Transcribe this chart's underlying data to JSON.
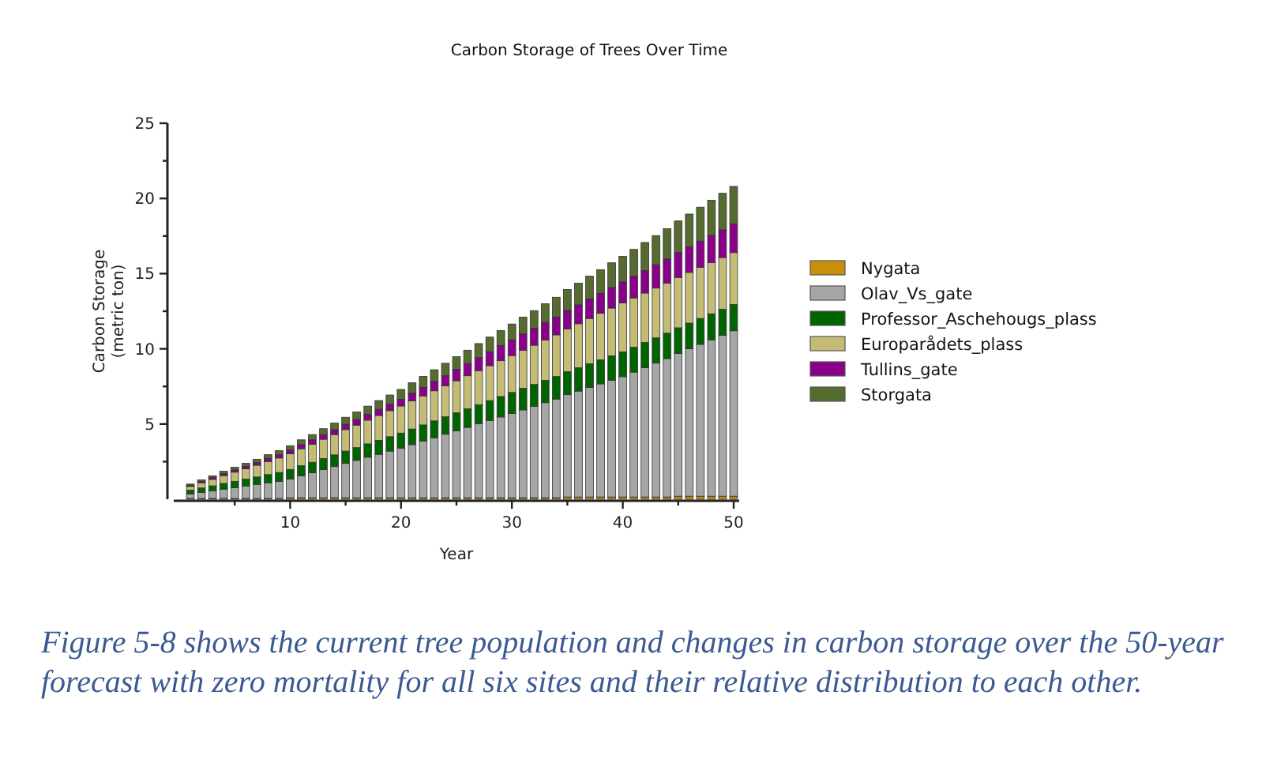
{
  "chart_data": {
    "type": "bar",
    "title": "Carbon Storage of Trees Over Time",
    "xlabel": "Year",
    "ylabel": "Carbon Storage\n(metric ton)",
    "stacked": true,
    "x": [
      1,
      2,
      3,
      4,
      5,
      6,
      7,
      8,
      9,
      10,
      11,
      12,
      13,
      14,
      15,
      16,
      17,
      18,
      19,
      20,
      21,
      22,
      23,
      24,
      25,
      26,
      27,
      28,
      29,
      30,
      31,
      32,
      33,
      34,
      35,
      36,
      37,
      38,
      39,
      40,
      41,
      42,
      43,
      44,
      45,
      46,
      47,
      48,
      49,
      50
    ],
    "xlim": [
      -0.5,
      50.5
    ],
    "xticks": [
      {
        "value": 5,
        "label": null
      },
      10,
      {
        "value": 15,
        "label": null
      },
      20,
      {
        "value": 25,
        "label": null
      },
      30,
      {
        "value": 35,
        "label": null
      },
      40,
      {
        "value": 45,
        "label": null
      },
      50
    ],
    "ylim": [
      0,
      25
    ],
    "yticks": [
      {
        "value": 2.5,
        "label": null
      },
      5,
      {
        "value": 7.5,
        "label": null
      },
      10,
      {
        "value": 12.5,
        "label": null
      },
      15,
      {
        "value": 17.5,
        "label": null
      },
      20,
      {
        "value": 22.5,
        "label": null
      },
      25
    ],
    "grid": false,
    "legend": "right",
    "series": [
      {
        "name": "Nygata",
        "color": "#c8900a",
        "values": [
          0.05,
          0.05,
          0.05,
          0.05,
          0.05,
          0.05,
          0.05,
          0.05,
          0.05,
          0.1,
          0.1,
          0.1,
          0.1,
          0.1,
          0.1,
          0.1,
          0.1,
          0.1,
          0.1,
          0.1,
          0.1,
          0.1,
          0.1,
          0.1,
          0.1,
          0.1,
          0.1,
          0.1,
          0.1,
          0.1,
          0.1,
          0.1,
          0.1,
          0.1,
          0.15,
          0.15,
          0.15,
          0.15,
          0.15,
          0.15,
          0.15,
          0.15,
          0.15,
          0.15,
          0.2,
          0.2,
          0.2,
          0.2,
          0.2,
          0.2
        ]
      },
      {
        "name": "Olav_Vs_gate",
        "color": "#a6a6a6",
        "values": [
          0.3,
          0.41,
          0.51,
          0.62,
          0.72,
          0.83,
          0.93,
          1.04,
          1.14,
          1.25,
          1.46,
          1.66,
          1.87,
          2.07,
          2.28,
          2.48,
          2.69,
          2.89,
          3.1,
          3.3,
          3.53,
          3.76,
          3.99,
          4.22,
          4.45,
          4.68,
          4.91,
          5.14,
          5.37,
          5.6,
          5.84,
          6.08,
          6.32,
          6.56,
          6.8,
          7.04,
          7.28,
          7.52,
          7.76,
          8.0,
          8.3,
          8.6,
          8.9,
          9.2,
          9.5,
          9.8,
          10.1,
          10.4,
          10.7,
          11.0
        ]
      },
      {
        "name": "Professor_Aschehougs_plass",
        "color": "#006400",
        "values": [
          0.25,
          0.29,
          0.33,
          0.38,
          0.42,
          0.46,
          0.5,
          0.55,
          0.59,
          0.63,
          0.67,
          0.7,
          0.74,
          0.78,
          0.82,
          0.85,
          0.89,
          0.93,
          0.96,
          1.0,
          1.04,
          1.08,
          1.12,
          1.16,
          1.2,
          1.24,
          1.28,
          1.32,
          1.36,
          1.4,
          1.43,
          1.45,
          1.48,
          1.5,
          1.53,
          1.55,
          1.58,
          1.6,
          1.63,
          1.65,
          1.66,
          1.67,
          1.68,
          1.69,
          1.7,
          1.71,
          1.72,
          1.73,
          1.74,
          1.75
        ]
      },
      {
        "name": "Europarådets_plass",
        "color": "#c4bc74",
        "values": [
          0.25,
          0.34,
          0.43,
          0.52,
          0.61,
          0.69,
          0.78,
          0.87,
          0.96,
          1.05,
          1.13,
          1.2,
          1.28,
          1.35,
          1.43,
          1.5,
          1.58,
          1.65,
          1.73,
          1.8,
          1.87,
          1.93,
          2.0,
          2.06,
          2.13,
          2.19,
          2.26,
          2.32,
          2.39,
          2.45,
          2.53,
          2.61,
          2.69,
          2.77,
          2.85,
          2.93,
          3.01,
          3.09,
          3.17,
          3.25,
          3.27,
          3.29,
          3.31,
          3.33,
          3.35,
          3.37,
          3.39,
          3.41,
          3.43,
          3.45
        ]
      },
      {
        "name": "Tullins_gate",
        "color": "#8b008b",
        "values": [
          0.08,
          0.1,
          0.12,
          0.14,
          0.16,
          0.17,
          0.19,
          0.21,
          0.23,
          0.25,
          0.27,
          0.29,
          0.31,
          0.33,
          0.35,
          0.37,
          0.39,
          0.41,
          0.43,
          0.45,
          0.51,
          0.57,
          0.63,
          0.69,
          0.75,
          0.81,
          0.87,
          0.93,
          0.99,
          1.05,
          1.09,
          1.12,
          1.16,
          1.19,
          1.23,
          1.26,
          1.3,
          1.33,
          1.37,
          1.4,
          1.45,
          1.5,
          1.55,
          1.6,
          1.65,
          1.7,
          1.75,
          1.8,
          1.85,
          1.9
        ]
      },
      {
        "name": "Storgata",
        "color": "#556b2f",
        "values": [
          0.08,
          0.1,
          0.12,
          0.15,
          0.17,
          0.19,
          0.21,
          0.24,
          0.26,
          0.28,
          0.32,
          0.35,
          0.39,
          0.43,
          0.47,
          0.5,
          0.54,
          0.58,
          0.61,
          0.65,
          0.69,
          0.73,
          0.77,
          0.81,
          0.85,
          0.89,
          0.93,
          0.97,
          1.01,
          1.05,
          1.12,
          1.18,
          1.25,
          1.31,
          1.38,
          1.44,
          1.51,
          1.57,
          1.64,
          1.7,
          1.78,
          1.86,
          1.94,
          2.02,
          2.1,
          2.18,
          2.26,
          2.34,
          2.42,
          2.5
        ]
      }
    ],
    "annotations": [
      "Figure 5-8 shows the current tree population and changes in carbon storage over the 50-year forecast with zero mortality for all six sites and their relative distribution to each other."
    ]
  }
}
